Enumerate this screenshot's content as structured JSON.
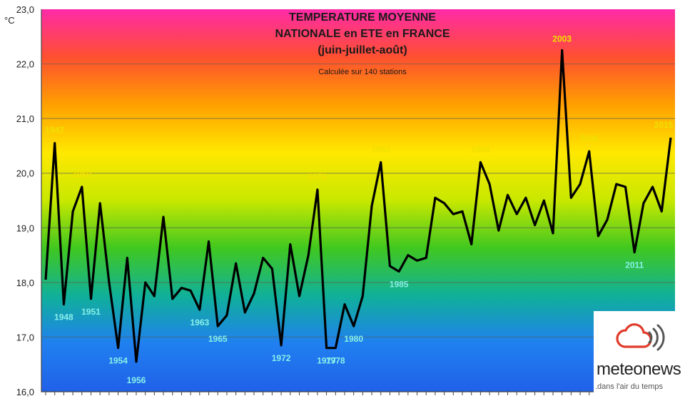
{
  "chart_data": {
    "type": "line",
    "title_lines": [
      "TEMPERATURE MOYENNE",
      "NATIONALE en ETE en FRANCE",
      "(juin-juillet-août)"
    ],
    "subtitle": "Calculée sur 140 stations",
    "ylabel": "°C",
    "ylim": [
      16.0,
      23.0
    ],
    "yticks": [
      "16,0",
      "17,0",
      "18,0",
      "19,0",
      "20,0",
      "21,0",
      "22,0",
      "23,0"
    ],
    "grid": true,
    "line_color": "#000000",
    "x": [
      1946,
      1947,
      1948,
      1949,
      1950,
      1951,
      1952,
      1953,
      1954,
      1955,
      1956,
      1957,
      1958,
      1959,
      1960,
      1961,
      1962,
      1963,
      1964,
      1965,
      1966,
      1967,
      1968,
      1969,
      1970,
      1971,
      1972,
      1973,
      1974,
      1975,
      1976,
      1977,
      1978,
      1979,
      1980,
      1981,
      1982,
      1983,
      1984,
      1985,
      1986,
      1987,
      1988,
      1989,
      1990,
      1991,
      1992,
      1993,
      1994,
      1995,
      1996,
      1997,
      1998,
      1999,
      2000,
      2001,
      2002,
      2003,
      2004,
      2005,
      2006,
      2007,
      2008,
      2009,
      2010,
      2011,
      2012,
      2013,
      2014,
      2015
    ],
    "values": [
      18.05,
      20.55,
      17.6,
      19.3,
      19.75,
      17.7,
      19.45,
      18.0,
      16.8,
      18.45,
      16.55,
      18.0,
      17.75,
      19.2,
      17.7,
      17.9,
      17.85,
      17.5,
      18.75,
      17.2,
      17.4,
      18.35,
      17.45,
      17.8,
      18.45,
      18.25,
      16.85,
      18.7,
      17.75,
      18.5,
      19.7,
      16.8,
      16.8,
      17.6,
      17.2,
      17.75,
      19.4,
      20.2,
      18.3,
      18.2,
      18.5,
      18.4,
      18.45,
      19.55,
      19.45,
      19.25,
      19.3,
      18.7,
      20.2,
      19.8,
      18.95,
      19.6,
      19.25,
      19.55,
      19.05,
      19.5,
      18.9,
      22.25,
      19.55,
      19.8,
      20.4,
      18.85,
      19.15,
      19.8,
      19.75,
      18.55,
      19.45,
      19.75,
      19.3,
      20.65
    ],
    "annotations": [
      {
        "year": 1947,
        "label": "1947",
        "position": "above",
        "color": "#f0e000"
      },
      {
        "year": 1948,
        "label": "1948",
        "position": "below",
        "color": "#88f0e8"
      },
      {
        "year": 1950,
        "label": "1950",
        "position": "above",
        "color": "#f0e000"
      },
      {
        "year": 1951,
        "label": "1951",
        "position": "below",
        "color": "#88f0e8"
      },
      {
        "year": 1954,
        "label": "1954",
        "position": "below",
        "color": "#88f0e8"
      },
      {
        "year": 1956,
        "label": "1956",
        "position": "below",
        "color": "#88f0e8",
        "large": true
      },
      {
        "year": 1963,
        "label": "1963",
        "position": "below",
        "color": "#88f0e8"
      },
      {
        "year": 1965,
        "label": "1965",
        "position": "below",
        "color": "#88f0e8"
      },
      {
        "year": 1972,
        "label": "1972",
        "position": "below",
        "color": "#88f0e8"
      },
      {
        "year": 1976,
        "label": "1976",
        "position": "above",
        "color": "#f0e000"
      },
      {
        "year": 1977,
        "label": "1977",
        "position": "below",
        "color": "#88f0e8"
      },
      {
        "year": 1978,
        "label": "1978",
        "position": "below",
        "color": "#88f0e8"
      },
      {
        "year": 1980,
        "label": "1980",
        "position": "below",
        "color": "#88f0e8"
      },
      {
        "year": 1983,
        "label": "1983",
        "position": "above",
        "color": "#f0e000"
      },
      {
        "year": 1985,
        "label": "1985",
        "position": "below",
        "color": "#88f0e8"
      },
      {
        "year": 1994,
        "label": "1994",
        "position": "above",
        "color": "#f0e000"
      },
      {
        "year": 2003,
        "label": "2003",
        "position": "above",
        "color": "#f0e000",
        "large": true
      },
      {
        "year": 2006,
        "label": "2006",
        "position": "above",
        "color": "#f0e000"
      },
      {
        "year": 2011,
        "label": "2011",
        "position": "below",
        "color": "#88f0e8"
      },
      {
        "year": 2015,
        "label": "2015",
        "position": "above",
        "color": "#f0e000"
      }
    ],
    "background_gradient": [
      "#ff2aa8",
      "#ff5030",
      "#ffa000",
      "#ffe800",
      "#c8e800",
      "#40c820",
      "#10b09a",
      "#2080f0",
      "#2060e8"
    ]
  },
  "logo": {
    "name": "meteonews",
    "tagline": ".dans l'air du temps"
  }
}
